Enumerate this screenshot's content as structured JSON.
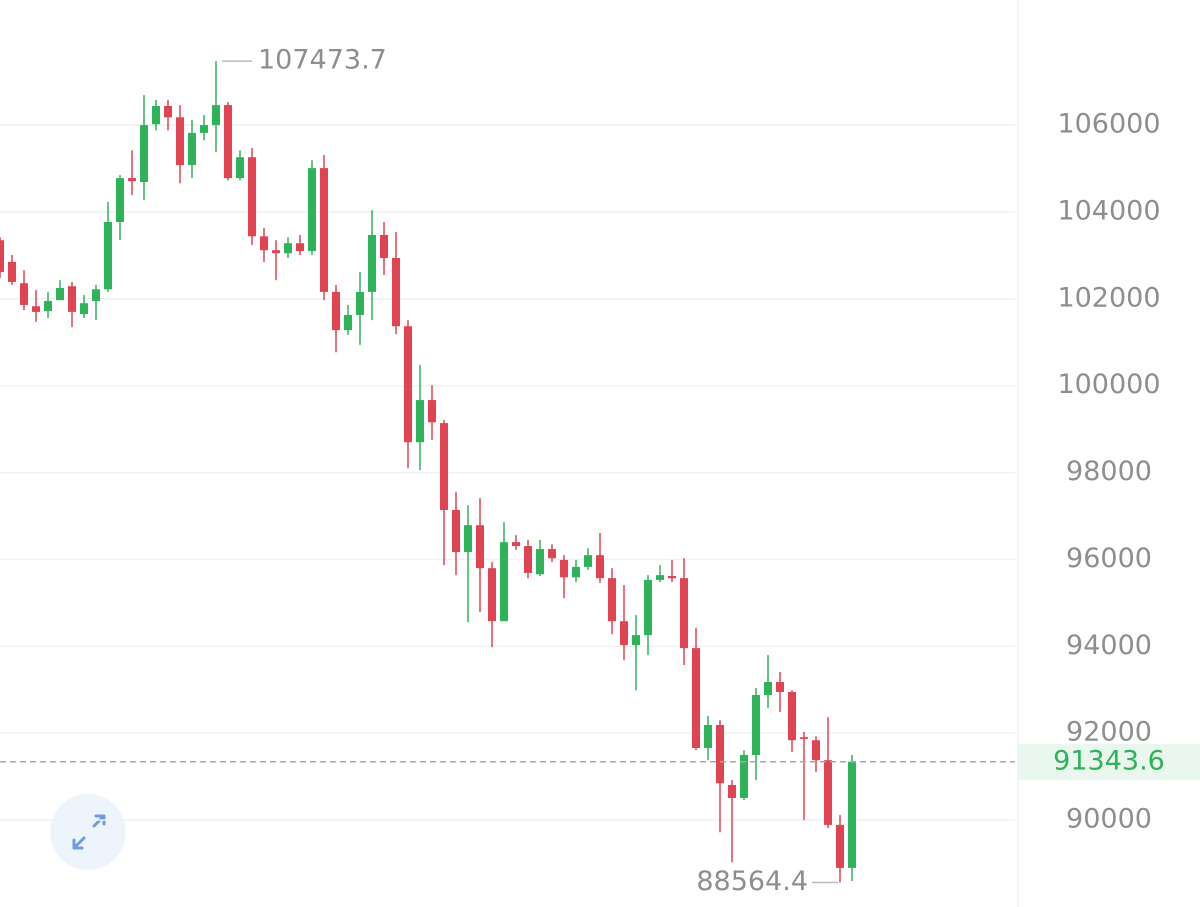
{
  "chart_data": {
    "type": "candlestick",
    "up_color": "#2fb35a",
    "down_color": "#e04352",
    "ylim": [
      88000,
      108880
    ],
    "yticks": [
      90000,
      92000,
      94000,
      96000,
      98000,
      100000,
      102000,
      104000,
      106000
    ],
    "grid": true,
    "open": [
      103350,
      102850,
      102360,
      101830,
      101720,
      101970,
      102290,
      101650,
      101950,
      102220,
      103770,
      104780,
      104690,
      106020,
      106440,
      106180,
      105080,
      105820,
      106000,
      106460,
      104780,
      105260,
      103440,
      103120,
      103050,
      103280,
      103100,
      105010,
      102160,
      101280,
      101630,
      102160,
      103470,
      102940,
      101370,
      98700,
      99670,
      99140,
      97140,
      96170,
      96790,
      95800,
      94580,
      96400,
      96310,
      95660,
      96240,
      95990,
      95590,
      95830,
      96100,
      95570,
      94580,
      94030,
      94260,
      95530,
      95620,
      95570,
      93960,
      91660,
      92190,
      90810,
      90510,
      91500,
      92880,
      93180,
      92950,
      91910,
      91840,
      91380,
      89890,
      88900
    ],
    "high": [
      103420,
      103010,
      102660,
      102200,
      102160,
      102430,
      102390,
      102090,
      102320,
      104230,
      104850,
      105420,
      106690,
      106580,
      106580,
      106460,
      106120,
      106230,
      107473.7,
      106530,
      105420,
      105470,
      103630,
      103350,
      103420,
      103470,
      105190,
      105310,
      102320,
      101860,
      102620,
      104040,
      103770,
      103540,
      101510,
      100480,
      100010,
      99210,
      97550,
      97250,
      97410,
      95940,
      96860,
      96560,
      96450,
      96450,
      96350,
      96100,
      95990,
      96260,
      96610,
      95800,
      95410,
      94720,
      95640,
      95870,
      95990,
      96030,
      94420,
      92400,
      92300,
      90920,
      91610,
      93040,
      93800,
      93410,
      92990,
      92030,
      91930,
      92370,
      90120,
      91500
    ],
    "low": [
      102480,
      102320,
      101740,
      101470,
      101560,
      101970,
      101350,
      101560,
      101510,
      102160,
      103350,
      104390,
      104270,
      105880,
      105880,
      104660,
      104780,
      105650,
      105380,
      104730,
      104730,
      103240,
      102850,
      102430,
      102940,
      103010,
      103010,
      101970,
      100770,
      101170,
      100940,
      101510,
      102550,
      101190,
      98100,
      98060,
      98750,
      95870,
      95640,
      94560,
      94790,
      93980,
      94580,
      96220,
      95570,
      95620,
      95940,
      95110,
      95480,
      95760,
      95460,
      94280,
      93680,
      92990,
      93800,
      95480,
      95480,
      93570,
      91610,
      91380,
      89720,
      89030,
      90460,
      90920,
      92580,
      92490,
      91570,
      90000,
      91110,
      89820,
      88564.4,
      88600
    ],
    "close": [
      102620,
      102390,
      101860,
      101700,
      101950,
      102250,
      101700,
      101900,
      102220,
      103770,
      104780,
      104710,
      106000,
      106440,
      106180,
      105080,
      105820,
      106000,
      106460,
      104780,
      105260,
      103440,
      103120,
      103050,
      103280,
      103100,
      105010,
      102160,
      101280,
      101630,
      102160,
      103470,
      102940,
      101370,
      98700,
      99670,
      99160,
      97140,
      96170,
      96790,
      95800,
      94580,
      96400,
      96310,
      95690,
      96240,
      96030,
      95590,
      95830,
      96100,
      95570,
      94580,
      94030,
      94260,
      95530,
      95640,
      95570,
      93960,
      91660,
      92190,
      90850,
      90510,
      91500,
      92880,
      93180,
      92950,
      91840,
      91870,
      91380,
      89890,
      88900,
      91343.6
    ]
  }
}
